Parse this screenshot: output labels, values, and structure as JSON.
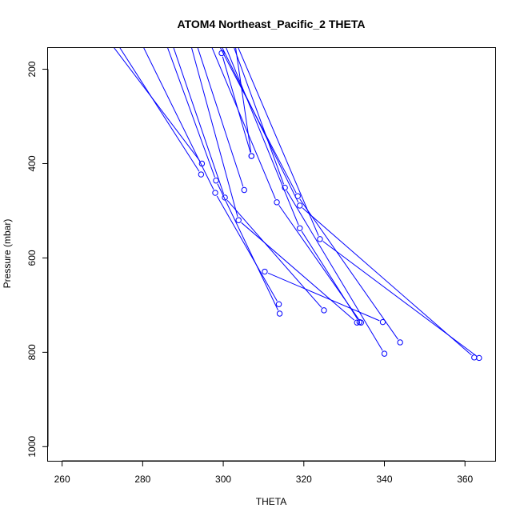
{
  "chart_data": {
    "type": "line",
    "title": "ATOM4 Northeast_Pacific_2 THETA",
    "xlabel": "THETA",
    "ylabel": "Pressure (mbar)",
    "xlim": [
      256.5,
      367.5
    ],
    "ylim": [
      1030,
      155
    ],
    "y_reversed": true,
    "grid": false,
    "x_ticks": [
      260,
      280,
      300,
      320,
      340,
      360
    ],
    "y_ticks": [
      200,
      400,
      600,
      800,
      1000
    ],
    "series_color": "#0000ff",
    "marker": "open-circle",
    "series": [
      {
        "points": [
          [
            272.5,
            150
          ],
          [
            294.7,
            400
          ]
        ]
      },
      {
        "points": [
          [
            274.0,
            150
          ],
          [
            294.5,
            423
          ]
        ]
      },
      {
        "points": [
          [
            280.0,
            150
          ],
          [
            298.0,
            462
          ],
          [
            313.8,
            698
          ]
        ]
      },
      {
        "points": [
          [
            286.0,
            150
          ],
          [
            298.2,
            436
          ],
          [
            314.0,
            718
          ]
        ]
      },
      {
        "points": [
          [
            287.5,
            150
          ],
          [
            300.4,
            472
          ],
          [
            325.0,
            711
          ]
        ]
      },
      {
        "points": [
          [
            292.0,
            150
          ],
          [
            303.8,
            520
          ],
          [
            333.2,
            737
          ]
        ]
      },
      {
        "points": [
          [
            293.5,
            150
          ],
          [
            305.2,
            456
          ]
        ]
      },
      {
        "points": [
          [
            297.0,
            150
          ],
          [
            313.3,
            482
          ],
          [
            334.2,
            737
          ]
        ]
      },
      {
        "points": [
          [
            302.5,
            150
          ],
          [
            315.3,
            451
          ],
          [
            340.0,
            803
          ]
        ]
      },
      {
        "points": [
          [
            299.0,
            150
          ],
          [
            318.5,
            469
          ],
          [
            343.9,
            779
          ]
        ]
      },
      {
        "points": [
          [
            299.5,
            150
          ],
          [
            319.0,
            489
          ],
          [
            362.3,
            811
          ]
        ]
      },
      {
        "points": [
          [
            300.5,
            150
          ],
          [
            319.0,
            537
          ],
          [
            333.8,
            736
          ]
        ]
      },
      {
        "points": [
          [
            303.5,
            150
          ],
          [
            324.0,
            560
          ],
          [
            363.5,
            812
          ]
        ]
      },
      {
        "points": [
          [
            303.0,
            150
          ],
          [
            307.0,
            384
          ]
        ]
      },
      {
        "points": [
          [
            299.6,
            166
          ],
          [
            307.0,
            384
          ]
        ]
      },
      {
        "points": [
          [
            310.3,
            629
          ],
          [
            339.6,
            736
          ]
        ]
      }
    ]
  }
}
